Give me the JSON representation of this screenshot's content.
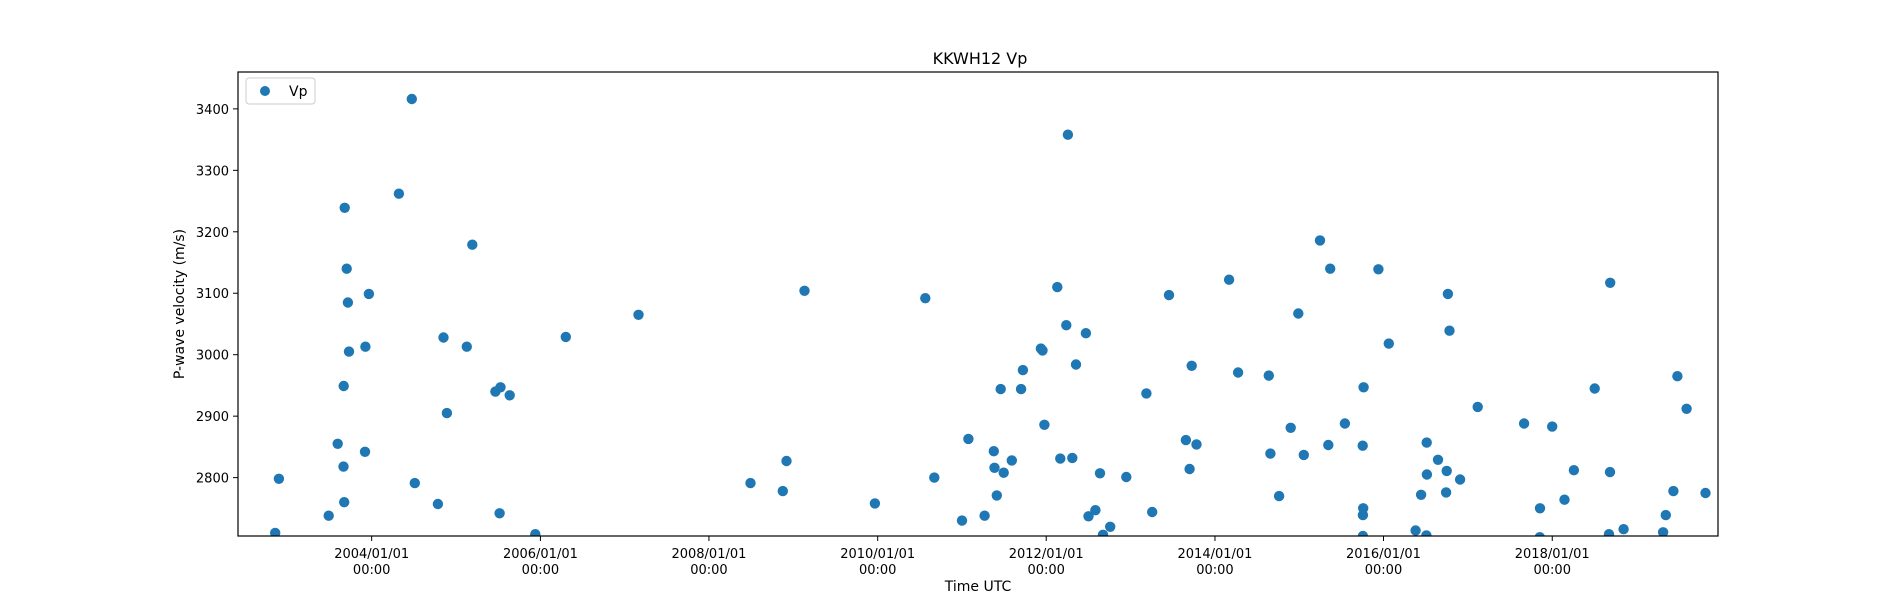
{
  "chart_data": {
    "type": "scatter",
    "title": "KKWH12 Vp",
    "xlabel": "Time UTC",
    "ylabel": "P-wave velocity (m/s)",
    "xlim": [
      "2002-06-01",
      "2019-12-20"
    ],
    "ylim": [
      2705,
      3460
    ],
    "x_ticks": [
      {
        "date": "2004-01-01",
        "label_date": "2004/01/01",
        "label_time": "00:00"
      },
      {
        "date": "2006-01-01",
        "label_date": "2006/01/01",
        "label_time": "00:00"
      },
      {
        "date": "2008-01-01",
        "label_date": "2008/01/01",
        "label_time": "00:00"
      },
      {
        "date": "2010-01-01",
        "label_date": "2010/01/01",
        "label_time": "00:00"
      },
      {
        "date": "2012-01-01",
        "label_date": "2012/01/01",
        "label_time": "00:00"
      },
      {
        "date": "2014-01-01",
        "label_date": "2014/01/01",
        "label_time": "00:00"
      },
      {
        "date": "2016-01-01",
        "label_date": "2016/01/01",
        "label_time": "00:00"
      },
      {
        "date": "2018-01-01",
        "label_date": "2018/01/01",
        "label_time": "00:00"
      }
    ],
    "y_ticks": [
      2800,
      2900,
      3000,
      3100,
      3200,
      3300,
      3400
    ],
    "grid": false,
    "legend": {
      "position": "top-left",
      "entries": [
        "Vp"
      ]
    },
    "marker_color": "#1f77b4",
    "series": [
      {
        "name": "Vp",
        "points": [
          [
            "2002-11-09",
            2710
          ],
          [
            "2002-11-25",
            2798
          ],
          [
            "2003-06-29",
            2738
          ],
          [
            "2003-08-07",
            2855
          ],
          [
            "2003-09-01",
            2818
          ],
          [
            "2003-09-04",
            2760
          ],
          [
            "2003-09-02",
            2949
          ],
          [
            "2003-09-06",
            3239
          ],
          [
            "2003-09-15",
            3140
          ],
          [
            "2003-09-20",
            3085
          ],
          [
            "2003-09-25",
            3005
          ],
          [
            "2003-12-03",
            2842
          ],
          [
            "2003-12-05",
            3013
          ],
          [
            "2003-12-20",
            3099
          ],
          [
            "2004-04-28",
            3262
          ],
          [
            "2004-06-23",
            3416
          ],
          [
            "2004-07-06",
            2791
          ],
          [
            "2004-10-14",
            2757
          ],
          [
            "2004-11-07",
            3028
          ],
          [
            "2004-11-22",
            2905
          ],
          [
            "2005-02-16",
            3013
          ],
          [
            "2005-03-12",
            3179
          ],
          [
            "2005-06-20",
            2940
          ],
          [
            "2005-07-12",
            2947
          ],
          [
            "2005-07-08",
            2742
          ],
          [
            "2005-08-21",
            2934
          ],
          [
            "2005-12-10",
            2708
          ],
          [
            "2006-04-21",
            3029
          ],
          [
            "2007-03-02",
            3065
          ],
          [
            "2008-06-29",
            2791
          ],
          [
            "2008-11-16",
            2778
          ],
          [
            "2008-12-02",
            2827
          ],
          [
            "2009-02-18",
            3104
          ],
          [
            "2009-12-20",
            2758
          ],
          [
            "2010-07-26",
            3092
          ],
          [
            "2010-09-03",
            2800
          ],
          [
            "2011-01-01",
            2730
          ],
          [
            "2011-01-29",
            2863
          ],
          [
            "2011-04-09",
            2738
          ],
          [
            "2011-05-19",
            2843
          ],
          [
            "2011-05-22",
            2816
          ],
          [
            "2011-06-01",
            2771
          ],
          [
            "2011-06-18",
            2944
          ],
          [
            "2011-07-01",
            2808
          ],
          [
            "2011-08-05",
            2828
          ],
          [
            "2011-09-14",
            2944
          ],
          [
            "2011-09-22",
            2975
          ],
          [
            "2011-12-09",
            3010
          ],
          [
            "2011-12-16",
            3007
          ],
          [
            "2011-12-24",
            2886
          ],
          [
            "2012-02-18",
            3110
          ],
          [
            "2012-03-02",
            2831
          ],
          [
            "2012-03-28",
            3048
          ],
          [
            "2012-04-04",
            3358
          ],
          [
            "2012-04-23",
            2832
          ],
          [
            "2012-05-09",
            2984
          ],
          [
            "2012-06-21",
            3035
          ],
          [
            "2012-07-02",
            2737
          ],
          [
            "2012-08-01",
            2747
          ],
          [
            "2012-08-21",
            2807
          ],
          [
            "2012-09-03",
            2707
          ],
          [
            "2012-10-04",
            2720
          ],
          [
            "2012-12-13",
            2801
          ],
          [
            "2013-03-10",
            2937
          ],
          [
            "2013-04-04",
            2744
          ],
          [
            "2013-06-16",
            3097
          ],
          [
            "2013-08-28",
            2861
          ],
          [
            "2013-09-13",
            2814
          ],
          [
            "2013-09-22",
            2982
          ],
          [
            "2013-10-13",
            2854
          ],
          [
            "2014-03-03",
            3122
          ],
          [
            "2014-04-11",
            2971
          ],
          [
            "2014-08-22",
            2966
          ],
          [
            "2014-08-29",
            2839
          ],
          [
            "2014-10-06",
            2770
          ],
          [
            "2014-11-25",
            2881
          ],
          [
            "2014-12-28",
            3067
          ],
          [
            "2015-01-21",
            2837
          ],
          [
            "2015-04-01",
            3186
          ],
          [
            "2015-05-15",
            3140
          ],
          [
            "2015-05-07",
            2853
          ],
          [
            "2015-07-18",
            2888
          ],
          [
            "2015-10-04",
            2705
          ],
          [
            "2015-10-04",
            2739
          ],
          [
            "2015-10-05",
            2750
          ],
          [
            "2015-10-03",
            2852
          ],
          [
            "2015-10-07",
            2947
          ],
          [
            "2015-12-10",
            3139
          ],
          [
            "2016-01-24",
            3018
          ],
          [
            "2016-05-19",
            2714
          ],
          [
            "2016-06-12",
            2772
          ],
          [
            "2016-07-05",
            2706
          ],
          [
            "2016-07-06",
            2857
          ],
          [
            "2016-07-07",
            2805
          ],
          [
            "2016-08-24",
            2829
          ],
          [
            "2016-09-28",
            2776
          ],
          [
            "2016-10-01",
            2811
          ],
          [
            "2016-10-06",
            3099
          ],
          [
            "2016-10-13",
            3039
          ],
          [
            "2016-11-28",
            2797
          ],
          [
            "2017-02-12",
            2915
          ],
          [
            "2017-09-01",
            2888
          ],
          [
            "2017-11-08",
            2703
          ],
          [
            "2017-11-09",
            2750
          ],
          [
            "2018-01-01",
            2883
          ],
          [
            "2018-02-23",
            2764
          ],
          [
            "2018-04-05",
            2812
          ],
          [
            "2018-07-04",
            2945
          ],
          [
            "2018-09-04",
            2708
          ],
          [
            "2018-09-08",
            2809
          ],
          [
            "2018-09-09",
            3117
          ],
          [
            "2018-11-06",
            2716
          ],
          [
            "2019-04-26",
            2711
          ],
          [
            "2019-05-08",
            2739
          ],
          [
            "2019-06-10",
            2778
          ],
          [
            "2019-06-27",
            2965
          ],
          [
            "2019-08-06",
            2912
          ],
          [
            "2019-10-27",
            2775
          ]
        ]
      }
    ]
  }
}
